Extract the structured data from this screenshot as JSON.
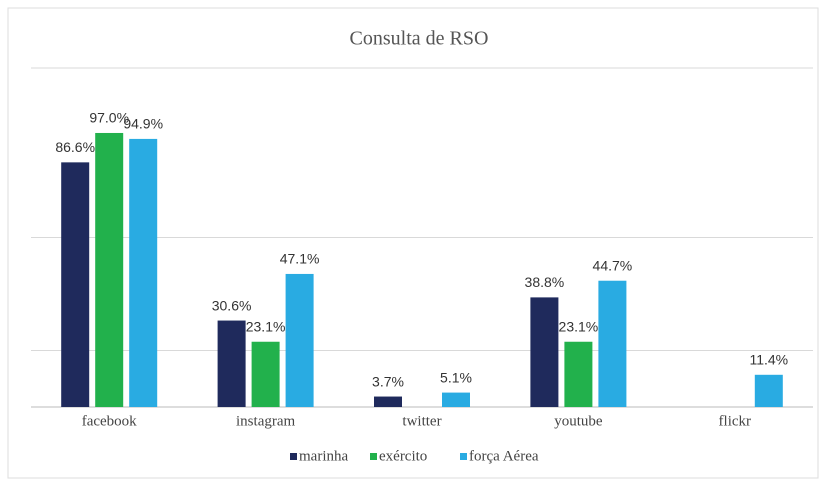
{
  "chart_data": {
    "type": "bar",
    "title": "Consulta de RSO",
    "categories": [
      "facebook",
      "instagram",
      "twitter",
      "youtube",
      "flickr"
    ],
    "series": [
      {
        "name": "marinha",
        "color": "#1f2a5c",
        "values": [
          86.6,
          30.6,
          3.7,
          38.8,
          null
        ],
        "value_labels": [
          "86.6%",
          "30.6%",
          "3.7%",
          "38.8%",
          null
        ]
      },
      {
        "name": "exército",
        "color": "#22b14c",
        "values": [
          97.0,
          23.1,
          null,
          23.1,
          null
        ],
        "value_labels": [
          "97.0%",
          "23.1%",
          null,
          "23.1%",
          null
        ]
      },
      {
        "name": "força Aérea",
        "color": "#29abe2",
        "values": [
          94.9,
          47.1,
          5.1,
          44.7,
          11.4
        ],
        "value_labels": [
          "94.9%",
          "47.1%",
          "5.1%",
          "44.7%",
          "11.4%"
        ]
      }
    ],
    "ylim": [
      0,
      120
    ],
    "yticks": [
      0,
      20,
      60,
      120
    ],
    "grid": true,
    "legend": "bottom"
  }
}
